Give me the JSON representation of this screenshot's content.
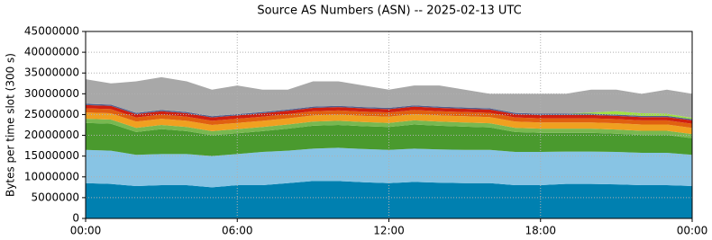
{
  "chart_data": {
    "type": "stacked-area",
    "title": "Source AS Numbers (ASN) -- 2025-02-13 UTC",
    "y_label": "Bytes per time slot (300 s)",
    "x": [
      0,
      1,
      2,
      3,
      4,
      5,
      6,
      7,
      8,
      9,
      10,
      11,
      12,
      13,
      14,
      15,
      16,
      17,
      18,
      19,
      20,
      21,
      22,
      23,
      24
    ],
    "xlim": [
      0,
      24
    ],
    "xticks": [
      {
        "value": 0,
        "label": "00:00"
      },
      {
        "value": 6,
        "label": "06:00"
      },
      {
        "value": 12,
        "label": "12:00"
      },
      {
        "value": 18,
        "label": "18:00"
      },
      {
        "value": 24,
        "label": "00:00"
      }
    ],
    "ylim": [
      0,
      45000000
    ],
    "yticks": [
      0,
      5000000,
      10000000,
      15000000,
      20000000,
      25000000,
      30000000,
      35000000,
      40000000,
      45000000
    ],
    "grid": true,
    "series": [
      {
        "color": "#0080b0",
        "values": [
          8500000,
          8300000,
          7800000,
          8000000,
          8000000,
          7500000,
          8000000,
          8000000,
          8500000,
          9000000,
          9000000,
          8700000,
          8500000,
          8800000,
          8600000,
          8500000,
          8500000,
          8000000,
          8000000,
          8300000,
          8300000,
          8200000,
          8000000,
          8000000,
          7800000
        ]
      },
      {
        "color": "#88c4e4",
        "values": [
          8000000,
          8000000,
          7500000,
          7500000,
          7500000,
          7500000,
          7500000,
          8000000,
          7800000,
          7800000,
          8000000,
          8000000,
          8000000,
          8000000,
          8000000,
          8000000,
          8000000,
          8000000,
          8000000,
          7800000,
          7800000,
          7800000,
          7800000,
          7800000,
          7500000
        ]
      },
      {
        "color": "#4a9a2e",
        "values": [
          6500000,
          6500000,
          5500000,
          6000000,
          5500000,
          5000000,
          5000000,
          5000000,
          5300000,
          5500000,
          5500000,
          5500000,
          5500000,
          5800000,
          5700000,
          5600000,
          5400000,
          4800000,
          4600000,
          4500000,
          4500000,
          4400000,
          4300000,
          4300000,
          4000000
        ]
      },
      {
        "color": "#78b850",
        "values": [
          1000000,
          1000000,
          1000000,
          1000000,
          1000000,
          1000000,
          1000000,
          1000000,
          1000000,
          1000000,
          1000000,
          1000000,
          1000000,
          1000000,
          1000000,
          1000000,
          1000000,
          1000000,
          1000000,
          1000000,
          1000000,
          1000000,
          1000000,
          1000000,
          1000000
        ]
      },
      {
        "color": "#f0a020",
        "values": [
          1500000,
          1500000,
          1500000,
          1500000,
          1500000,
          1500000,
          1500000,
          1500000,
          1500000,
          1500000,
          1500000,
          1500000,
          1500000,
          1500000,
          1500000,
          1500000,
          1500000,
          1500000,
          1500000,
          1500000,
          1500000,
          1500000,
          1500000,
          1500000,
          1500000
        ]
      },
      {
        "color": "#e06010",
        "values": [
          1000000,
          1000000,
          1000000,
          1000000,
          1000000,
          1000000,
          1000000,
          1000000,
          1000000,
          1000000,
          1000000,
          1000000,
          1000000,
          1000000,
          1000000,
          1000000,
          1000000,
          1000000,
          1000000,
          1000000,
          1000000,
          1000000,
          1000000,
          1000000,
          1000000
        ]
      },
      {
        "color": "#d02010",
        "values": [
          800000,
          800000,
          800000,
          800000,
          800000,
          800000,
          800000,
          800000,
          800000,
          800000,
          800000,
          800000,
          800000,
          800000,
          800000,
          800000,
          800000,
          800000,
          800000,
          800000,
          800000,
          800000,
          800000,
          800000,
          800000
        ]
      },
      {
        "color": "#506090",
        "values": [
          300000,
          300000,
          300000,
          300000,
          300000,
          300000,
          300000,
          300000,
          300000,
          300000,
          300000,
          300000,
          300000,
          300000,
          300000,
          300000,
          300000,
          300000,
          300000,
          300000,
          300000,
          300000,
          300000,
          300000,
          300000
        ]
      },
      {
        "color": "#a0e040",
        "values": [
          0,
          0,
          0,
          0,
          0,
          0,
          0,
          0,
          0,
          0,
          0,
          0,
          0,
          0,
          0,
          0,
          0,
          0,
          0,
          0,
          300000,
          800000,
          600000,
          500000,
          300000
        ]
      },
      {
        "color": "#a8a8a8",
        "values": [
          5900000,
          5100000,
          7600000,
          7900000,
          7400000,
          6400000,
          6900000,
          5400000,
          4800000,
          6100000,
          5900000,
          5200000,
          4400000,
          4800000,
          5100000,
          4300000,
          3500000,
          4600000,
          4800000,
          4800000,
          5500000,
          5200000,
          4700000,
          5800000,
          5800000
        ]
      }
    ]
  }
}
